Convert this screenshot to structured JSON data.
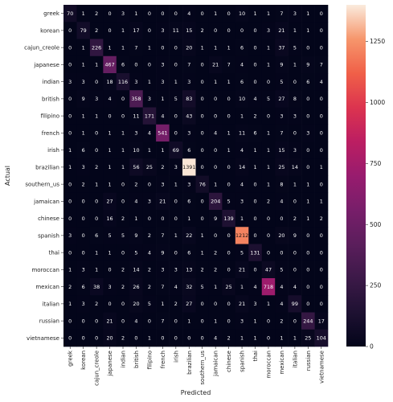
{
  "chart_data": {
    "type": "heatmap",
    "xlabel": "Predicted",
    "ylabel": "Actual",
    "labels": [
      "greek",
      "korean",
      "cajun_creole",
      "japanese",
      "indian",
      "british",
      "filipino",
      "french",
      "irish",
      "brazilian",
      "southern_us",
      "jamaican",
      "chinese",
      "spanish",
      "thai",
      "moroccan",
      "mexican",
      "italian",
      "russian",
      "vietnamese"
    ],
    "matrix": [
      [
        70,
        1,
        2,
        0,
        3,
        1,
        0,
        0,
        0,
        4,
        0,
        1,
        0,
        10,
        1,
        1,
        7,
        3,
        1,
        0
      ],
      [
        0,
        79,
        2,
        0,
        1,
        17,
        0,
        3,
        11,
        15,
        2,
        0,
        0,
        0,
        0,
        3,
        21,
        1,
        1,
        0
      ],
      [
        0,
        1,
        226,
        1,
        1,
        7,
        1,
        0,
        0,
        20,
        1,
        1,
        1,
        6,
        0,
        1,
        37,
        5,
        0,
        0
      ],
      [
        0,
        1,
        1,
        467,
        6,
        0,
        0,
        3,
        0,
        7,
        0,
        21,
        7,
        4,
        0,
        1,
        9,
        1,
        9,
        7
      ],
      [
        3,
        3,
        0,
        18,
        116,
        3,
        1,
        3,
        1,
        3,
        0,
        1,
        1,
        6,
        0,
        0,
        5,
        0,
        6,
        4
      ],
      [
        0,
        9,
        3,
        4,
        0,
        358,
        3,
        1,
        5,
        83,
        0,
        0,
        0,
        10,
        4,
        5,
        27,
        8,
        0,
        0
      ],
      [
        0,
        1,
        1,
        0,
        0,
        11,
        171,
        4,
        0,
        43,
        0,
        0,
        0,
        1,
        2,
        0,
        3,
        3,
        0,
        0
      ],
      [
        0,
        1,
        0,
        1,
        1,
        3,
        4,
        541,
        0,
        3,
        0,
        4,
        1,
        11,
        6,
        1,
        7,
        0,
        3,
        0
      ],
      [
        1,
        6,
        0,
        1,
        1,
        10,
        1,
        1,
        69,
        6,
        0,
        0,
        1,
        4,
        1,
        1,
        15,
        3,
        0,
        0
      ],
      [
        1,
        3,
        2,
        1,
        1,
        56,
        25,
        2,
        3,
        1391,
        0,
        0,
        0,
        14,
        1,
        1,
        25,
        14,
        0,
        1
      ],
      [
        0,
        2,
        1,
        1,
        0,
        2,
        0,
        3,
        1,
        3,
        76,
        1,
        0,
        4,
        0,
        1,
        8,
        1,
        1,
        0
      ],
      [
        0,
        0,
        0,
        27,
        0,
        4,
        3,
        21,
        0,
        6,
        0,
        204,
        5,
        3,
        0,
        2,
        4,
        0,
        1,
        1
      ],
      [
        0,
        0,
        0,
        16,
        2,
        1,
        0,
        0,
        0,
        1,
        0,
        9,
        139,
        1,
        0,
        0,
        0,
        2,
        1,
        2
      ],
      [
        3,
        0,
        6,
        5,
        5,
        9,
        2,
        7,
        1,
        22,
        1,
        0,
        0,
        1212,
        0,
        0,
        20,
        9,
        0,
        0
      ],
      [
        0,
        0,
        1,
        1,
        0,
        5,
        4,
        9,
        0,
        6,
        1,
        2,
        0,
        5,
        131,
        0,
        0,
        0,
        0,
        0
      ],
      [
        1,
        3,
        1,
        0,
        2,
        14,
        2,
        3,
        3,
        13,
        2,
        2,
        0,
        21,
        0,
        47,
        5,
        0,
        0,
        0
      ],
      [
        2,
        6,
        38,
        3,
        2,
        26,
        2,
        7,
        4,
        32,
        5,
        1,
        25,
        1,
        4,
        718,
        4,
        4,
        0,
        0
      ],
      [
        1,
        3,
        2,
        0,
        0,
        20,
        5,
        1,
        2,
        27,
        0,
        0,
        0,
        21,
        3,
        1,
        4,
        99,
        0,
        0
      ],
      [
        0,
        0,
        0,
        21,
        0,
        4,
        0,
        7,
        0,
        1,
        0,
        1,
        0,
        3,
        1,
        0,
        2,
        0,
        244,
        17
      ],
      [
        0,
        0,
        0,
        20,
        2,
        0,
        1,
        0,
        0,
        0,
        0,
        4,
        2,
        1,
        1,
        0,
        1,
        1,
        25,
        104
      ]
    ],
    "vmin": 0,
    "vmax": 1400,
    "colorbar_ticks": [
      0,
      250,
      500,
      750,
      1000,
      1250
    ],
    "colormap": "rocket",
    "grid": false,
    "legend": "colorbar-right"
  }
}
